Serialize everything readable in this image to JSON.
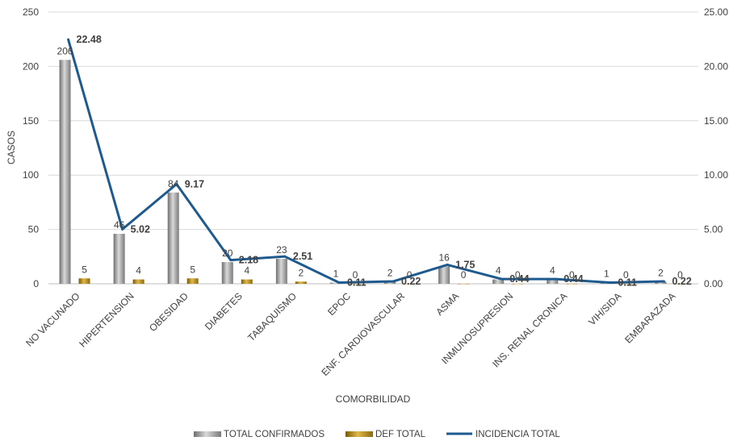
{
  "chart_data": {
    "type": "bar",
    "categories": [
      "NO VACUNADO",
      "HIPERTENSION",
      "OBESIDAD",
      "DIABETES",
      "TABAQUISMO",
      "EPOC",
      "ENF. CARDIOVASCULAR",
      "ASMA",
      "INMUNOSUPRESION",
      "INS. RENAL CRONICA",
      "VIH/SIDA",
      "EMBARAZADA"
    ],
    "xlabel": "COMORBILIDAD",
    "ylabel": "CASOS",
    "ylim": [
      0,
      250
    ],
    "y_ticks": [
      "0",
      "50",
      "100",
      "150",
      "200",
      "250"
    ],
    "y2lim": [
      0,
      25
    ],
    "y2_ticks": [
      "0.00",
      "5.00",
      "10.00",
      "15.00",
      "20.00",
      "25.00"
    ],
    "grid": true,
    "legend_position": "bottom",
    "series": [
      {
        "name": "TOTAL CONFIRMADOS",
        "type": "bar",
        "axis": "left",
        "color": "#8c8c8c",
        "values": [
          206,
          46,
          84,
          20,
          23,
          1,
          2,
          16,
          4,
          4,
          1,
          2
        ],
        "labels": [
          "206",
          "46",
          "84",
          "20",
          "23",
          "1",
          "2",
          "16",
          "4",
          "4",
          "1",
          "2"
        ]
      },
      {
        "name": "DEF TOTAL",
        "type": "bar",
        "axis": "left",
        "color": "#b8860b",
        "values": [
          5,
          4,
          5,
          4,
          2,
          0,
          0,
          0,
          0,
          0,
          0,
          0
        ],
        "labels": [
          "5",
          "4",
          "5",
          "4",
          "2",
          "0",
          "0",
          "0",
          "0",
          "0",
          "0",
          "0"
        ]
      },
      {
        "name": "INCIDENCIA TOTAL",
        "type": "line",
        "axis": "right",
        "color": "#1f5a8e",
        "values": [
          22.48,
          5.02,
          9.17,
          2.18,
          2.51,
          0.11,
          0.22,
          1.75,
          0.44,
          0.44,
          0.11,
          0.22
        ],
        "labels": [
          "22.48",
          "5.02",
          "9.17",
          "2.18",
          "2.51",
          "0.11",
          "0.22",
          "1.75",
          "0.44",
          "0.44",
          "0.11",
          "0.22"
        ]
      }
    ]
  }
}
